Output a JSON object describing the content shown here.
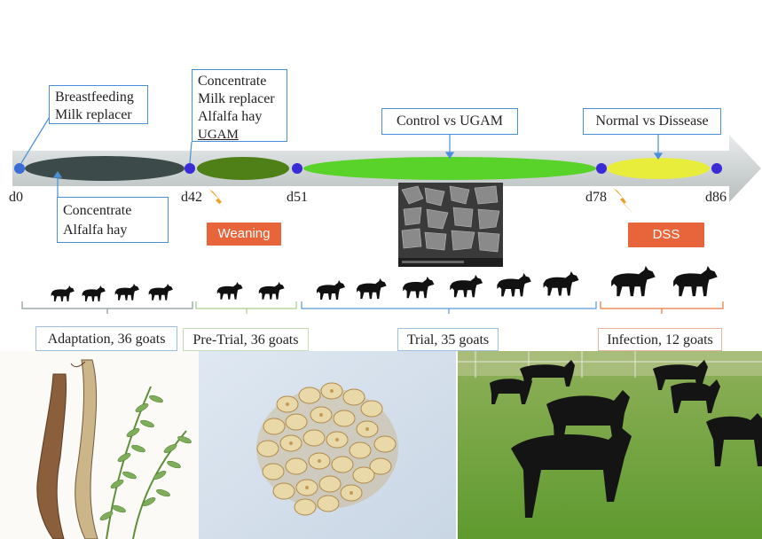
{
  "timeline": {
    "days": [
      "d0",
      "d42",
      "d51",
      "d78",
      "d86"
    ]
  },
  "callouts": {
    "d0_feed": [
      "Breastfeeding",
      "Milk replacer"
    ],
    "d0_to_d42": [
      "Concentrate",
      "Alfalfa hay"
    ],
    "d42_feed": [
      "Concentrate",
      "Milk replacer",
      "Alfalfa hay",
      "UGAM"
    ],
    "trial": "Control vs UGAM",
    "infection": "Normal vs Dissease"
  },
  "events": {
    "weaning": "Weaning",
    "dss": "DSS"
  },
  "groups": {
    "adaptation": "Adaptation, 36 goats",
    "pretrial": "Pre-Trial, 36 goats",
    "trial": "Trial, 35 goats",
    "infection": "Infection, 12 goats"
  },
  "colors": {
    "arrow": "#d9dcdc",
    "dot": "#3a2bd6",
    "phase_adaptation": "#3d4a4a",
    "phase_pretrial": "#4f7f17",
    "phase_trial": "#59d22a",
    "phase_infection": "#e8ec3a",
    "bracket_adaptation": "#8a9a9a",
    "bracket_pretrial": "#a8d08d",
    "bracket_trial": "#5b9bd5",
    "bracket_infection": "#e87a3a",
    "event_button": "#e8643a"
  },
  "icons": [
    "lightning-icon",
    "goat-icon"
  ]
}
